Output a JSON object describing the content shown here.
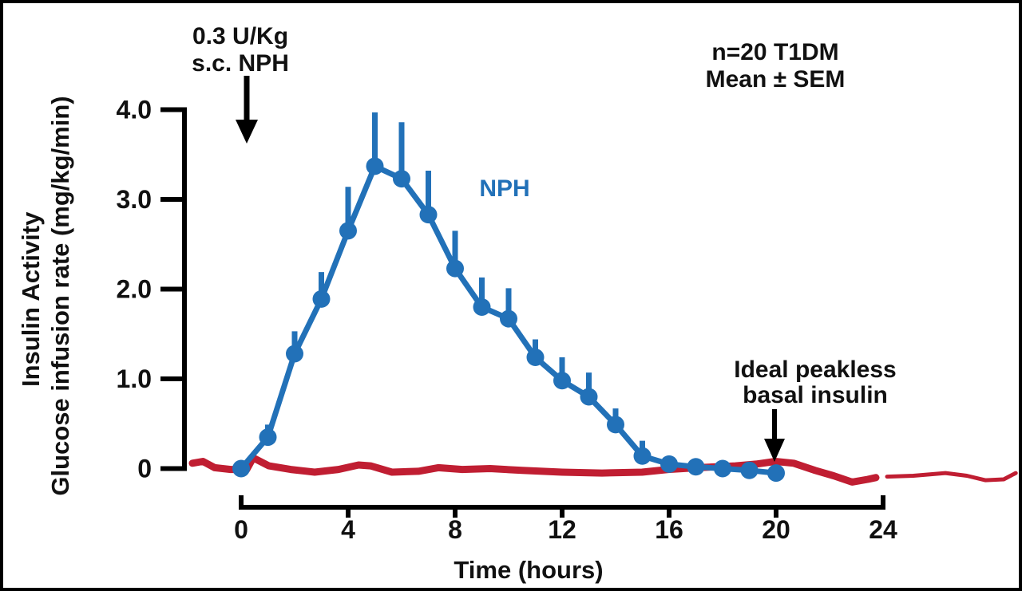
{
  "figure": {
    "background": "#ffffff",
    "border_color": "#000000"
  },
  "chart_data": {
    "type": "line",
    "title": "",
    "xlabel": "Time (hours)",
    "ylabel_lines": [
      "Insulin Activity",
      "Glucose infusion rate (mg/kg/min)"
    ],
    "xlim": [
      -2,
      29.3
    ],
    "ylim": [
      -0.2,
      4.0
    ],
    "grid": false,
    "legend_position": "none",
    "x_ticks": [
      0,
      4,
      8,
      12,
      16,
      20,
      24
    ],
    "x_tick_labels": [
      "0",
      "4",
      "8",
      "12",
      "16",
      "20",
      "24"
    ],
    "y_ticks": [
      0,
      1,
      2,
      3,
      4
    ],
    "y_tick_labels": [
      "0",
      "1.0",
      "2.0",
      "3.0",
      "4.0"
    ],
    "series": [
      {
        "name": "NPH",
        "color": "#2271b8",
        "marker": "circle",
        "error_bars": "upper SEM only",
        "x": [
          0,
          1,
          2,
          3,
          4,
          5,
          6,
          7,
          8,
          9,
          10,
          11,
          12,
          13,
          14,
          15,
          16,
          17,
          18,
          19,
          20
        ],
        "values": [
          0.0,
          0.35,
          1.28,
          1.89,
          2.65,
          3.37,
          3.23,
          2.83,
          2.23,
          1.8,
          1.67,
          1.24,
          0.98,
          0.8,
          0.49,
          0.14,
          0.05,
          0.02,
          0.0,
          -0.02,
          -0.05
        ],
        "sem": [
          0.0,
          0.14,
          0.25,
          0.3,
          0.49,
          0.6,
          0.63,
          0.49,
          0.42,
          0.33,
          0.34,
          0.2,
          0.26,
          0.27,
          0.18,
          0.17,
          0.0,
          0.0,
          0.0,
          0.0,
          0.0
        ]
      },
      {
        "name": "Ideal peakless basal insulin",
        "color": "#c01e32",
        "marker": "none",
        "segments": [
          [
            [
              -1.82,
              0.06
            ],
            [
              -1.43,
              0.08
            ],
            [
              -0.99,
              0.01
            ],
            [
              -0.39,
              -0.01
            ],
            [
              0.21,
              -0.01
            ],
            [
              0.45,
              0.12
            ],
            [
              1.04,
              0.03
            ],
            [
              1.85,
              -0.01
            ],
            [
              2.75,
              -0.04
            ],
            [
              3.64,
              -0.01
            ],
            [
              4.39,
              0.04
            ],
            [
              4.84,
              0.03
            ],
            [
              5.64,
              -0.04
            ],
            [
              6.63,
              -0.03
            ],
            [
              7.37,
              0.01
            ],
            [
              8.27,
              -0.01
            ],
            [
              9.31,
              0.0
            ],
            [
              10.51,
              -0.02
            ],
            [
              12.0,
              -0.04
            ],
            [
              13.49,
              -0.05
            ],
            [
              14.99,
              -0.04
            ],
            [
              15.97,
              -0.01
            ],
            [
              17.07,
              0.01
            ],
            [
              18.48,
              0.03
            ],
            [
              19.25,
              0.05
            ],
            [
              19.97,
              0.08
            ],
            [
              20.66,
              0.06
            ],
            [
              21.46,
              -0.02
            ],
            [
              22.15,
              -0.08
            ],
            [
              22.84,
              -0.15
            ],
            [
              23.43,
              -0.12
            ],
            [
              23.73,
              -0.1
            ]
          ],
          [
            [
              24.15,
              -0.09
            ],
            [
              25.13,
              -0.08
            ],
            [
              26.33,
              -0.05
            ],
            [
              27.13,
              -0.08
            ],
            [
              27.82,
              -0.13
            ],
            [
              28.51,
              -0.12
            ],
            [
              28.96,
              -0.05
            ]
          ]
        ]
      }
    ],
    "annotations": {
      "injection": {
        "lines": [
          "0.3 U/Kg",
          "s.c. NPH"
        ]
      },
      "cohort": {
        "lines": [
          "n=20 T1DM",
          "Mean ± SEM"
        ]
      },
      "nph_label": "NPH",
      "basal_label": {
        "lines": [
          "Ideal peakless",
          "basal insulin"
        ]
      }
    }
  }
}
